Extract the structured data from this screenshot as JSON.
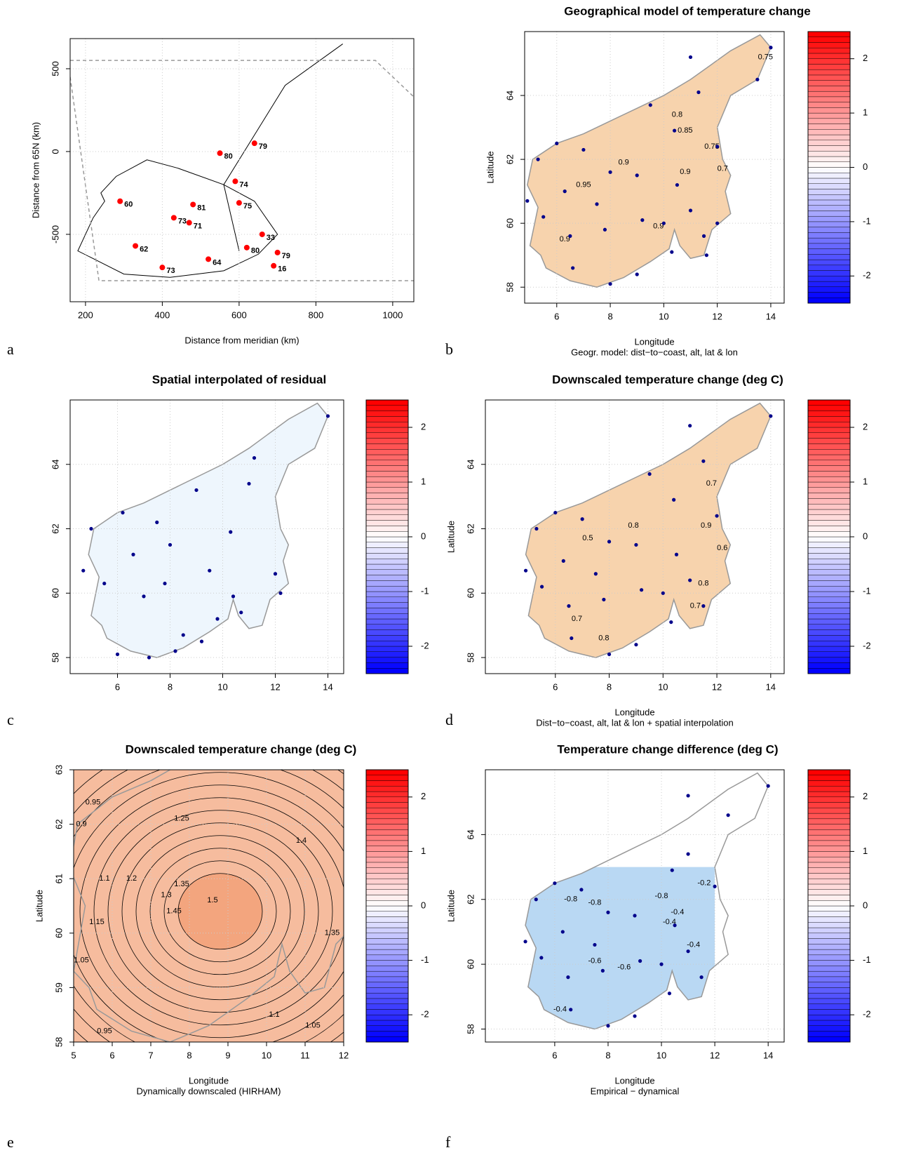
{
  "chart_data": [
    {
      "type": "station-map",
      "panel": "a",
      "xlabel": "Distance from meridian (km)",
      "ylabel": "Distance from 65N (km)",
      "xlim": [
        160,
        1055
      ],
      "xticks": [
        200,
        400,
        600,
        800,
        1000
      ],
      "ylim": [
        -907,
        682
      ],
      "yticks": [
        -500,
        0,
        500
      ],
      "grid": true,
      "point_color": "#ff0000",
      "stations": {
        "x": [
          640,
          550,
          590,
          600,
          430,
          470,
          620,
          700,
          400,
          520,
          330,
          290,
          480,
          660,
          690
        ],
        "y": [
          50,
          -10,
          -180,
          -310,
          -400,
          -430,
          -580,
          -610,
          -700,
          -650,
          -570,
          -300,
          -320,
          -500,
          -690
        ],
        "labels": [
          79,
          80,
          74,
          75,
          73,
          71,
          80,
          79,
          73,
          64,
          62,
          60,
          81,
          33,
          16
        ]
      }
    },
    {
      "type": "contour-map",
      "panel": "b",
      "title": "Geographical model of temperature change",
      "xlabel": "Longitude",
      "subtitle": "Geogr. model: dist−to−coast, alt, lat & lon",
      "ylabel": "Latitude",
      "xlim": [
        4.8,
        14.5
      ],
      "xticks": [
        6,
        8,
        10,
        12,
        14
      ],
      "ylim": [
        57.5,
        66
      ],
      "yticks": [
        58,
        60,
        62,
        64
      ],
      "grid": true,
      "fill_color": "#f7d3ad",
      "point_color": "#00008b",
      "zlim": [
        -2.5,
        2.5
      ],
      "zticks": [
        -2,
        -1,
        0,
        1,
        2
      ],
      "colorscale": [
        "#0000ff",
        "#ffffff",
        "#ff0000"
      ],
      "stations": {
        "lon": [
          11,
          11.3,
          9.5,
          10.4,
          12,
          5.3,
          6,
          7,
          8,
          6.3,
          9,
          7.5,
          10.5,
          11,
          4.9,
          5.5,
          6.5,
          7.8,
          9.2,
          10,
          11.5,
          12,
          6.6,
          8,
          9,
          10.3,
          11.6,
          13.5,
          14
        ],
        "lat": [
          65.2,
          64.1,
          63.7,
          62.9,
          62.4,
          62,
          62.5,
          62.3,
          61.6,
          61,
          61.5,
          60.6,
          61.2,
          60.4,
          60.7,
          60.2,
          59.6,
          59.8,
          60.1,
          60,
          59.6,
          60,
          58.6,
          58.1,
          58.4,
          59.1,
          59,
          64.5,
          65.5
        ]
      },
      "contour_labels": [
        {
          "x": 13.8,
          "y": 65.2,
          "value": 0.75
        },
        {
          "x": 10.5,
          "y": 63.4,
          "value": 0.8
        },
        {
          "x": 10.8,
          "y": 62.9,
          "value": 0.85
        },
        {
          "x": 8.5,
          "y": 61.9,
          "value": 0.9
        },
        {
          "x": 7,
          "y": 61.2,
          "value": 0.95
        },
        {
          "x": 10.8,
          "y": 61.6,
          "value": 0.9
        },
        {
          "x": 12.2,
          "y": 61.7,
          "value": 0.7
        },
        {
          "x": 11.8,
          "y": 62.4,
          "value": 0.75
        },
        {
          "x": 9.8,
          "y": 59.9,
          "value": 0.9
        },
        {
          "x": 6.3,
          "y": 59.5,
          "value": 0.9
        }
      ]
    },
    {
      "type": "contour-map",
      "panel": "c",
      "title": "Spatial interpolated of residual",
      "xlim": [
        4.2,
        14.6
      ],
      "xticks": [
        6,
        8,
        10,
        12,
        14
      ],
      "ylim": [
        57.5,
        66
      ],
      "yticks": [
        58,
        60,
        62,
        64
      ],
      "grid": true,
      "fill_color": "#eef6fd",
      "point_color": "#00008b",
      "zlim": [
        -2.5,
        2.5
      ],
      "zticks": [
        -2,
        -1,
        0,
        1,
        2
      ],
      "colorscale": [
        "#0000ff",
        "#ffffff",
        "#ff0000"
      ],
      "stations": {
        "lon": [
          11.2,
          9,
          7.5,
          10.3,
          10.4,
          4.7,
          5,
          6.6,
          8,
          7,
          9.5,
          11,
          12,
          6.2,
          5.5,
          7.8,
          8.5,
          9.8,
          10.7,
          12.2,
          6,
          7.2,
          8.2,
          9.2,
          14
        ],
        "lat": [
          64.2,
          63.2,
          62.2,
          61.9,
          59.9,
          60.7,
          62,
          61.2,
          61.5,
          59.9,
          60.7,
          63.4,
          60.6,
          62.5,
          60.3,
          60.3,
          58.7,
          59.2,
          59.4,
          60,
          58.1,
          58,
          58.2,
          58.5,
          65.5
        ]
      }
    },
    {
      "type": "contour-map",
      "panel": "d",
      "title": "Downscaled temperature change (deg C)",
      "xlabel": "Longitude",
      "subtitle": "Dist−to−coast, alt, lat & lon + spatial interpolation",
      "ylabel": "Latitude",
      "xlim": [
        3.4,
        14.5
      ],
      "xticks": [
        6,
        8,
        10,
        12,
        14
      ],
      "ylim": [
        57.5,
        66
      ],
      "yticks": [
        58,
        60,
        62,
        64
      ],
      "grid": true,
      "fill_color": "#f7d3ad",
      "point_color": "#00008b",
      "zlim": [
        -2.5,
        2.5
      ],
      "zticks": [
        -2,
        -1,
        0,
        1,
        2
      ],
      "colorscale": [
        "#0000ff",
        "#ffffff",
        "#ff0000"
      ],
      "stations": {
        "lon": [
          11,
          11.5,
          9.5,
          10.4,
          12,
          5.3,
          6,
          7,
          8,
          6.3,
          9,
          7.5,
          10.5,
          11,
          4.9,
          5.5,
          6.5,
          7.8,
          9.2,
          10,
          11.5,
          6.6,
          8,
          9,
          10.3,
          14
        ],
        "lat": [
          65.2,
          64.1,
          63.7,
          62.9,
          62.4,
          62,
          62.5,
          62.3,
          61.6,
          61,
          61.5,
          60.6,
          61.2,
          60.4,
          60.7,
          60.2,
          59.6,
          59.8,
          60.1,
          60,
          59.6,
          58.6,
          58.1,
          58.4,
          59.1,
          65.5
        ]
      },
      "contour_labels": [
        {
          "x": 11.8,
          "y": 63.4,
          "value": 0.7
        },
        {
          "x": 11.6,
          "y": 62.1,
          "value": 0.9
        },
        {
          "x": 8.9,
          "y": 62.1,
          "value": 0.8
        },
        {
          "x": 7.2,
          "y": 61.7,
          "value": 0.5
        },
        {
          "x": 12.2,
          "y": 61.4,
          "value": 0.6
        },
        {
          "x": 11.5,
          "y": 60.3,
          "value": 0.8
        },
        {
          "x": 11.2,
          "y": 59.6,
          "value": 0.7
        },
        {
          "x": 6.8,
          "y": 59.2,
          "value": 0.7
        },
        {
          "x": 7.8,
          "y": 58.6,
          "value": 0.8
        }
      ]
    },
    {
      "type": "contour-grid",
      "panel": "e",
      "title": "Downscaled temperature change (deg C)",
      "xlabel": "Longitude",
      "subtitle": "Dynamically downscaled (HIRHAM)",
      "ylabel": "Latitude",
      "xlim": [
        5,
        12
      ],
      "xticks": [
        5,
        6,
        7,
        8,
        9,
        10,
        11,
        12
      ],
      "ylim": [
        58,
        63
      ],
      "yticks": [
        58,
        59,
        60,
        61,
        62,
        63
      ],
      "grid": true,
      "fill_color": "#f3a57e",
      "zlim": [
        -2.5,
        2.5
      ],
      "zticks": [
        -2,
        -1,
        0,
        1,
        2
      ],
      "colorscale": [
        "#0000ff",
        "#ffffff",
        "#ff0000"
      ],
      "contour_labels": [
        {
          "x": 5.5,
          "y": 62.4,
          "value": 0.95
        },
        {
          "x": 5.2,
          "y": 62,
          "value": 0.9
        },
        {
          "x": 7.8,
          "y": 62.1,
          "value": 1.25
        },
        {
          "x": 5.8,
          "y": 61,
          "value": 1.1
        },
        {
          "x": 6.5,
          "y": 61,
          "value": 1.2
        },
        {
          "x": 7.4,
          "y": 60.7,
          "value": 1.3
        },
        {
          "x": 7.8,
          "y": 60.9,
          "value": 1.35
        },
        {
          "x": 7.6,
          "y": 60.4,
          "value": 1.45
        },
        {
          "x": 8.6,
          "y": 60.6,
          "value": 1.5
        },
        {
          "x": 10.9,
          "y": 61.7,
          "value": 1.4
        },
        {
          "x": 11.7,
          "y": 60,
          "value": 1.35
        },
        {
          "x": 5.6,
          "y": 60.2,
          "value": 1.15
        },
        {
          "x": 5.2,
          "y": 59.5,
          "value": 1.05
        },
        {
          "x": 5.8,
          "y": 58.2,
          "value": 0.95
        },
        {
          "x": 10.2,
          "y": 58.5,
          "value": 1.1
        },
        {
          "x": 11.2,
          "y": 58.3,
          "value": 1.05
        }
      ]
    },
    {
      "type": "contour-map",
      "panel": "f",
      "title": "Temperature change difference (deg C)",
      "xlabel": "Longitude",
      "subtitle": "Empirical − dynamical",
      "ylabel": "Latitude",
      "xlim": [
        3.4,
        14.6
      ],
      "xticks": [
        6,
        8,
        10,
        12,
        14
      ],
      "ylim": [
        57.6,
        66
      ],
      "yticks": [
        58,
        60,
        62,
        64
      ],
      "grid": true,
      "fill_color": "#b9d8f3",
      "clip": [
        12,
        63
      ],
      "point_color": "#00008b",
      "zlim": [
        -2.5,
        2.5
      ],
      "zticks": [
        -2,
        -1,
        0,
        1,
        2
      ],
      "colorscale": [
        "#0000ff",
        "#ffffff",
        "#ff0000"
      ],
      "stations": {
        "lon": [
          11,
          12.5,
          11,
          10.4,
          12,
          5.3,
          6,
          7,
          8,
          6.3,
          9,
          7.5,
          10.5,
          11,
          4.9,
          5.5,
          6.5,
          7.8,
          9.2,
          10,
          11.5,
          6.6,
          8,
          9,
          10.3,
          14
        ],
        "lat": [
          65.2,
          64.6,
          63.4,
          62.9,
          62.4,
          62,
          62.5,
          62.3,
          61.6,
          61,
          61.5,
          60.6,
          61.2,
          60.4,
          60.7,
          60.2,
          59.6,
          59.8,
          60.1,
          60,
          59.6,
          58.6,
          58.1,
          58.4,
          59.1,
          65.5
        ]
      },
      "contour_labels": [
        {
          "x": 6.6,
          "y": 62,
          "value": -0.8
        },
        {
          "x": 7.5,
          "y": 61.9,
          "value": -0.8
        },
        {
          "x": 10,
          "y": 62.1,
          "value": -0.8
        },
        {
          "x": 10.6,
          "y": 61.6,
          "value": -0.4
        },
        {
          "x": 11.6,
          "y": 62.5,
          "value": -0.2
        },
        {
          "x": 7.5,
          "y": 60.1,
          "value": -0.6
        },
        {
          "x": 8.6,
          "y": 59.9,
          "value": -0.6
        },
        {
          "x": 11.2,
          "y": 60.6,
          "value": -0.4
        },
        {
          "x": 6.2,
          "y": 58.6,
          "value": -0.4
        },
        {
          "x": 10.3,
          "y": 61.3,
          "value": -0.4
        }
      ]
    }
  ]
}
